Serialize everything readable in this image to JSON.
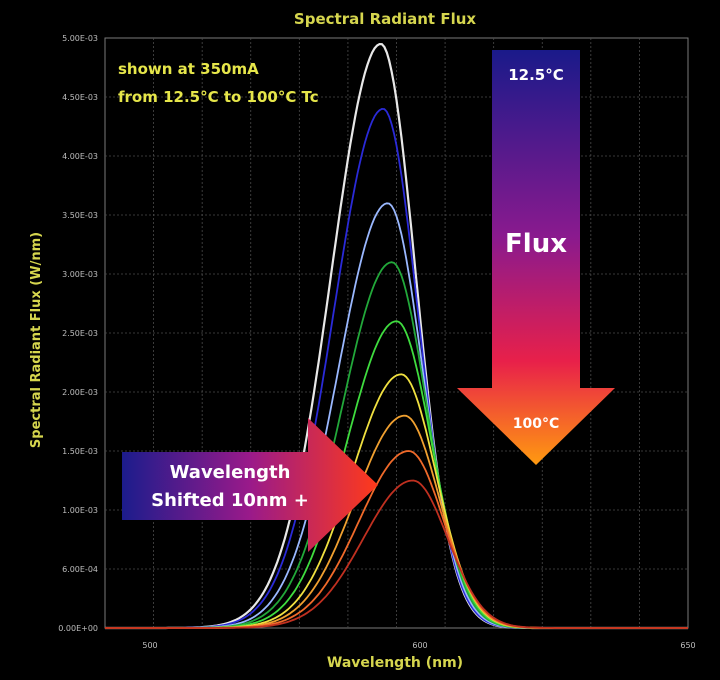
{
  "chart_data": {
    "type": "line",
    "title": "Spectral Radiant Flux",
    "xlabel": "Wavelength  (nm)",
    "ylabel": "Spectral Radiant Flux  (W/nm)",
    "x_ticks": [
      "500",
      "600",
      "650"
    ],
    "y_ticks": [
      "0.00E+00",
      "6.00E-04",
      "1.00E-03",
      "1.50E-03",
      "2.00E-03",
      "2.50E-03",
      "3.00E-03",
      "3.50E-03",
      "4.00E-03",
      "4.50E-03",
      "5.00E-03"
    ],
    "ylim": [
      0,
      0.005
    ],
    "grid": true,
    "series": [
      {
        "peak_x": 0.473,
        "peak_y": 0.00495,
        "color": "#e8e8e8"
      },
      {
        "peak_x": 0.477,
        "peak_y": 0.0044,
        "color": "#2a2ad8"
      },
      {
        "peak_x": 0.485,
        "peak_y": 0.0036,
        "color": "#9ab8ff"
      },
      {
        "peak_x": 0.492,
        "peak_y": 0.0031,
        "color": "#22a83a"
      },
      {
        "peak_x": 0.5,
        "peak_y": 0.0026,
        "color": "#3fdc3f"
      },
      {
        "peak_x": 0.508,
        "peak_y": 0.00215,
        "color": "#f0e040"
      },
      {
        "peak_x": 0.514,
        "peak_y": 0.0018,
        "color": "#f0a030"
      },
      {
        "peak_x": 0.521,
        "peak_y": 0.0015,
        "color": "#f06a2a"
      },
      {
        "peak_x": 0.528,
        "peak_y": 0.00125,
        "color": "#c03020"
      }
    ]
  },
  "annotations": {
    "condition_line1": "shown at 350mA",
    "condition_line2": "from 12.5°C to 100°C Tc",
    "flux_arrow_label": "Flux",
    "flux_top_temp": "12.5°C",
    "flux_bottom_temp": "100°C",
    "wavelength_arrow_line1": "Wavelength",
    "wavelength_arrow_line2": "Shifted 10nm +"
  },
  "colors": {
    "title": "#d6d64e",
    "arrow_blue": "#1c1c8c",
    "arrow_magenta": "#b0188a",
    "arrow_red": "#f0202a",
    "arrow_orange": "#ff8a10"
  }
}
